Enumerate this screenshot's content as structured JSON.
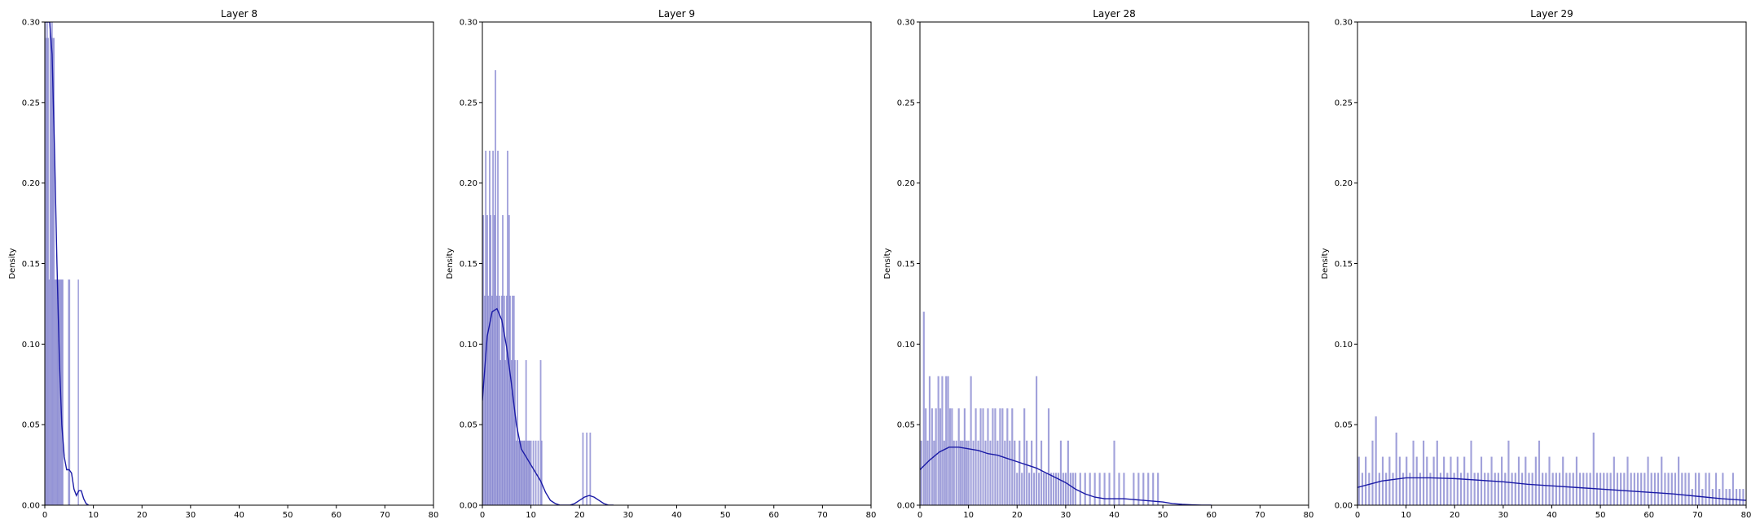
{
  "figure": {
    "ylabel": "Density"
  },
  "style": {
    "bar_fill": "#7b7bcc",
    "kde_line": "#1a1aa6",
    "axis_color": "#000000"
  },
  "chart_data": [
    {
      "type": "bar",
      "title": "Layer 8",
      "ylabel": "Density",
      "xlabel": "",
      "xlim": [
        0,
        80
      ],
      "ylim": [
        0,
        0.3
      ],
      "x_ticks": [
        0,
        10,
        20,
        30,
        40,
        50,
        60,
        70,
        80
      ],
      "y_ticks": [
        0.0,
        0.05,
        0.1,
        0.15,
        0.2,
        0.25,
        0.3
      ],
      "bin_width": 0.2,
      "histogram": {
        "x": [
          0.1,
          0.3,
          0.5,
          0.7,
          0.9,
          1.1,
          1.3,
          1.5,
          1.7,
          1.9,
          2.1,
          2.3,
          2.5,
          2.7,
          2.9,
          3.1,
          3.3,
          3.5,
          3.7,
          4.9,
          5.1,
          6.9
        ],
        "density": [
          0.3,
          0.29,
          0.3,
          0.29,
          0.14,
          0.3,
          0.29,
          0.3,
          0.29,
          0.29,
          0.14,
          0.14,
          0.14,
          0.14,
          0.14,
          0.14,
          0.14,
          0.14,
          0.14,
          0.14,
          0.14,
          0.14
        ]
      },
      "kde": {
        "x": [
          0,
          0.5,
          1,
          1.5,
          2,
          2.5,
          3,
          3.5,
          4,
          4.5,
          5,
          5.5,
          6,
          6.5,
          7,
          7.5,
          8,
          8.5,
          9
        ],
        "density": [
          0.3,
          0.3,
          0.3,
          0.28,
          0.22,
          0.15,
          0.09,
          0.05,
          0.03,
          0.022,
          0.022,
          0.02,
          0.01,
          0.006,
          0.009,
          0.009,
          0.004,
          0.001,
          0.0
        ]
      }
    },
    {
      "type": "bar",
      "title": "Layer 9",
      "ylabel": "Density",
      "xlabel": "",
      "xlim": [
        0,
        80
      ],
      "ylim": [
        0,
        0.3
      ],
      "x_ticks": [
        0,
        10,
        20,
        30,
        40,
        50,
        60,
        70,
        80
      ],
      "y_ticks": [
        0.0,
        0.05,
        0.1,
        0.15,
        0.2,
        0.25,
        0.3
      ],
      "bin_width": 0.25,
      "histogram": {
        "x": [
          0.2,
          0.5,
          0.7,
          1.0,
          1.2,
          1.5,
          1.7,
          2.0,
          2.2,
          2.5,
          2.7,
          3.0,
          3.2,
          3.5,
          3.7,
          4.0,
          4.2,
          4.5,
          4.7,
          5.0,
          5.2,
          5.5,
          5.7,
          6.0,
          6.2,
          6.5,
          6.7,
          7.0,
          7.2,
          7.5,
          7.7,
          8.0,
          8.2,
          8.5,
          8.7,
          9.0,
          9.2,
          9.5,
          9.7,
          10.0,
          10.5,
          11.0,
          11.5,
          12.0,
          12.2,
          20.7,
          21.5,
          22.2
        ],
        "density": [
          0.18,
          0.13,
          0.22,
          0.18,
          0.13,
          0.22,
          0.18,
          0.13,
          0.22,
          0.18,
          0.27,
          0.13,
          0.22,
          0.13,
          0.09,
          0.13,
          0.18,
          0.13,
          0.09,
          0.13,
          0.22,
          0.18,
          0.13,
          0.09,
          0.13,
          0.13,
          0.09,
          0.04,
          0.09,
          0.04,
          0.04,
          0.04,
          0.04,
          0.04,
          0.04,
          0.09,
          0.04,
          0.04,
          0.04,
          0.04,
          0.04,
          0.04,
          0.04,
          0.09,
          0.04,
          0.045,
          0.045,
          0.045
        ]
      },
      "kde": {
        "x": [
          0,
          1,
          2,
          3,
          4,
          5,
          6,
          7,
          8,
          9,
          10,
          11,
          12,
          13,
          14,
          15,
          16,
          17,
          18,
          19,
          20,
          21,
          22,
          23,
          24,
          25,
          26,
          27
        ],
        "density": [
          0.065,
          0.105,
          0.12,
          0.122,
          0.115,
          0.098,
          0.075,
          0.05,
          0.035,
          0.03,
          0.025,
          0.02,
          0.015,
          0.008,
          0.003,
          0.001,
          0.0,
          0.0,
          0.0,
          0.001,
          0.003,
          0.005,
          0.006,
          0.005,
          0.003,
          0.001,
          0.0,
          0.0
        ]
      }
    },
    {
      "type": "bar",
      "title": "Layer 28",
      "ylabel": "Density",
      "xlabel": "",
      "xlim": [
        0,
        80
      ],
      "ylim": [
        0,
        0.3
      ],
      "x_ticks": [
        0,
        10,
        20,
        30,
        40,
        50,
        60,
        70,
        80
      ],
      "y_ticks": [
        0.0,
        0.05,
        0.1,
        0.15,
        0.2,
        0.25,
        0.3
      ],
      "bin_width": 0.3,
      "histogram": {
        "x": [
          0.3,
          0.8,
          1.2,
          1.6,
          2.0,
          2.5,
          2.9,
          3.3,
          3.8,
          4.2,
          4.6,
          5.0,
          5.4,
          5.8,
          6.2,
          6.6,
          7.0,
          7.5,
          8.0,
          8.4,
          8.8,
          9.2,
          9.6,
          10.0,
          10.5,
          11.0,
          11.5,
          12.0,
          12.5,
          13.0,
          13.5,
          14.0,
          14.5,
          15.0,
          15.5,
          16.0,
          16.5,
          17.0,
          17.5,
          18.0,
          18.5,
          19.0,
          19.5,
          20.0,
          20.5,
          21.0,
          21.5,
          22.0,
          22.5,
          23.0,
          23.5,
          24.0,
          24.5,
          25.0,
          25.5,
          26.0,
          26.5,
          27.0,
          27.5,
          28.0,
          28.5,
          29.0,
          29.5,
          30.0,
          30.5,
          31.0,
          31.5,
          32.0,
          33.0,
          34.0,
          35.0,
          36.0,
          37.0,
          38.0,
          39.0,
          40.0,
          41.0,
          42.0,
          44.0,
          45.0,
          46.0,
          47.0,
          48.0,
          49.0
        ],
        "density": [
          0.04,
          0.12,
          0.06,
          0.04,
          0.08,
          0.06,
          0.04,
          0.06,
          0.08,
          0.06,
          0.08,
          0.04,
          0.08,
          0.08,
          0.06,
          0.06,
          0.04,
          0.04,
          0.06,
          0.04,
          0.04,
          0.06,
          0.04,
          0.04,
          0.08,
          0.04,
          0.06,
          0.04,
          0.06,
          0.06,
          0.04,
          0.06,
          0.04,
          0.06,
          0.06,
          0.04,
          0.06,
          0.06,
          0.04,
          0.06,
          0.04,
          0.06,
          0.04,
          0.02,
          0.04,
          0.02,
          0.06,
          0.04,
          0.02,
          0.04,
          0.02,
          0.08,
          0.02,
          0.04,
          0.02,
          0.02,
          0.06,
          0.02,
          0.02,
          0.02,
          0.02,
          0.04,
          0.02,
          0.02,
          0.04,
          0.02,
          0.02,
          0.02,
          0.02,
          0.02,
          0.02,
          0.02,
          0.02,
          0.02,
          0.02,
          0.04,
          0.02,
          0.02,
          0.02,
          0.02,
          0.02,
          0.02,
          0.02,
          0.02
        ]
      },
      "kde": {
        "x": [
          0,
          2,
          4,
          6,
          8,
          10,
          12,
          14,
          16,
          18,
          20,
          22,
          24,
          26,
          28,
          30,
          32,
          34,
          36,
          38,
          40,
          42,
          44,
          46,
          48,
          50,
          52,
          54,
          56,
          58,
          60
        ],
        "density": [
          0.022,
          0.028,
          0.033,
          0.036,
          0.036,
          0.035,
          0.034,
          0.032,
          0.031,
          0.029,
          0.027,
          0.025,
          0.023,
          0.02,
          0.017,
          0.014,
          0.01,
          0.007,
          0.005,
          0.004,
          0.004,
          0.004,
          0.0035,
          0.003,
          0.0025,
          0.002,
          0.001,
          0.0005,
          0.0002,
          0.0,
          0.0
        ]
      }
    },
    {
      "type": "bar",
      "title": "Layer 29",
      "ylabel": "Density",
      "xlabel": "",
      "xlim": [
        0,
        80
      ],
      "ylim": [
        0,
        0.3
      ],
      "x_ticks": [
        0,
        10,
        20,
        30,
        40,
        50,
        60,
        70,
        80
      ],
      "y_ticks": [
        0.0,
        0.05,
        0.1,
        0.15,
        0.2,
        0.25,
        0.3
      ],
      "bin_width": 0.3,
      "histogram": {
        "x": [
          0.3,
          1.0,
          1.7,
          2.4,
          3.1,
          3.8,
          4.5,
          5.2,
          5.9,
          6.6,
          7.3,
          8.0,
          8.7,
          9.4,
          10.1,
          10.8,
          11.5,
          12.2,
          12.9,
          13.6,
          14.3,
          15.0,
          15.7,
          16.4,
          17.1,
          17.8,
          18.5,
          19.2,
          19.9,
          20.6,
          21.3,
          22.0,
          22.7,
          23.4,
          24.1,
          24.8,
          25.5,
          26.2,
          26.9,
          27.6,
          28.3,
          29.0,
          29.7,
          30.4,
          31.1,
          31.8,
          32.5,
          33.2,
          33.9,
          34.6,
          35.3,
          36.0,
          36.7,
          37.4,
          38.1,
          38.8,
          39.5,
          40.2,
          40.9,
          41.6,
          42.3,
          43.0,
          43.7,
          44.4,
          45.1,
          45.8,
          46.5,
          47.2,
          47.9,
          48.6,
          49.3,
          50.0,
          50.7,
          51.4,
          52.1,
          52.8,
          53.5,
          54.2,
          54.9,
          55.6,
          56.3,
          57.0,
          57.7,
          58.4,
          59.1,
          59.8,
          60.5,
          61.2,
          61.9,
          62.6,
          63.3,
          64.0,
          64.7,
          65.4,
          66.1,
          66.8,
          67.5,
          68.2,
          68.9,
          69.6,
          70.3,
          71.0,
          71.7,
          72.4,
          73.1,
          73.8,
          74.5,
          75.2,
          75.9,
          76.6,
          77.3,
          78.0,
          78.7,
          79.4
        ],
        "density": [
          0.03,
          0.02,
          0.03,
          0.02,
          0.04,
          0.055,
          0.02,
          0.03,
          0.02,
          0.03,
          0.02,
          0.045,
          0.03,
          0.02,
          0.03,
          0.02,
          0.04,
          0.03,
          0.02,
          0.04,
          0.03,
          0.02,
          0.03,
          0.04,
          0.02,
          0.03,
          0.02,
          0.03,
          0.02,
          0.03,
          0.02,
          0.03,
          0.02,
          0.04,
          0.02,
          0.02,
          0.03,
          0.02,
          0.02,
          0.03,
          0.02,
          0.02,
          0.03,
          0.02,
          0.04,
          0.02,
          0.02,
          0.03,
          0.02,
          0.03,
          0.02,
          0.02,
          0.03,
          0.04,
          0.02,
          0.02,
          0.03,
          0.02,
          0.02,
          0.02,
          0.03,
          0.02,
          0.02,
          0.02,
          0.03,
          0.02,
          0.02,
          0.02,
          0.02,
          0.045,
          0.02,
          0.02,
          0.02,
          0.02,
          0.02,
          0.03,
          0.02,
          0.02,
          0.02,
          0.03,
          0.02,
          0.02,
          0.02,
          0.02,
          0.02,
          0.03,
          0.02,
          0.02,
          0.02,
          0.03,
          0.02,
          0.02,
          0.02,
          0.02,
          0.03,
          0.02,
          0.02,
          0.02,
          0.01,
          0.02,
          0.02,
          0.01,
          0.02,
          0.02,
          0.01,
          0.02,
          0.01,
          0.02,
          0.01,
          0.01,
          0.02,
          0.01,
          0.01,
          0.01
        ]
      },
      "kde": {
        "x": [
          0,
          5,
          10,
          15,
          20,
          25,
          30,
          35,
          40,
          45,
          50,
          55,
          60,
          65,
          70,
          75,
          80
        ],
        "density": [
          0.011,
          0.015,
          0.017,
          0.017,
          0.0165,
          0.0155,
          0.0145,
          0.013,
          0.012,
          0.011,
          0.01,
          0.009,
          0.008,
          0.007,
          0.0055,
          0.004,
          0.003
        ]
      }
    }
  ]
}
